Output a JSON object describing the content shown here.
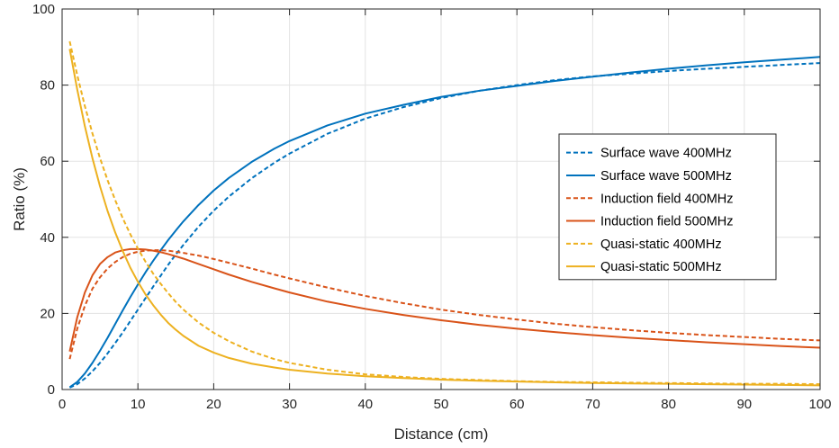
{
  "chart_data": {
    "type": "line",
    "title": "",
    "xlabel": "Distance (cm)",
    "ylabel": "Ratio (%)",
    "xlim": [
      0,
      100
    ],
    "ylim": [
      0,
      100
    ],
    "xticks": [
      "0",
      "10",
      "20",
      "30",
      "40",
      "50",
      "60",
      "70",
      "80",
      "90",
      "100"
    ],
    "yticks": [
      "0",
      "20",
      "40",
      "60",
      "80",
      "100"
    ],
    "grid": true,
    "legend_position": "right",
    "x": [
      1,
      2,
      3,
      4,
      5,
      6,
      7,
      8,
      9,
      10,
      11,
      12,
      13,
      14,
      15,
      16,
      18,
      20,
      22,
      25,
      28,
      30,
      35,
      40,
      45,
      50,
      55,
      60,
      65,
      70,
      75,
      80,
      85,
      90,
      95,
      100
    ],
    "series": [
      {
        "name": "Surface wave 400MHz",
        "color": "#0072BD",
        "dash": "dashed",
        "values": [
          0.5,
          1.4,
          2.9,
          4.8,
          7.0,
          9.5,
          12.2,
          15.0,
          18.0,
          21.0,
          24.0,
          27.0,
          29.9,
          32.8,
          35.5,
          38.0,
          42.8,
          47.0,
          50.7,
          55.5,
          59.6,
          62.0,
          67.2,
          71.2,
          74.2,
          76.6,
          78.5,
          80.0,
          81.3,
          82.3,
          83.0,
          83.7,
          84.3,
          84.8,
          85.3,
          85.8
        ]
      },
      {
        "name": "Surface wave 500MHz",
        "color": "#0072BD",
        "dash": "solid",
        "values": [
          0.6,
          2.0,
          4.2,
          7.0,
          10.2,
          13.6,
          17.2,
          20.8,
          24.3,
          27.6,
          30.8,
          33.8,
          36.6,
          39.3,
          41.8,
          44.2,
          48.5,
          52.3,
          55.6,
          59.8,
          63.3,
          65.3,
          69.4,
          72.5,
          74.8,
          76.9,
          78.5,
          79.8,
          81.1,
          82.2,
          83.3,
          84.3,
          85.2,
          86.0,
          86.7,
          87.4
        ]
      },
      {
        "name": "Induction field 400MHz",
        "color": "#D95319",
        "dash": "dashed",
        "values": [
          8.0,
          16.0,
          22.0,
          26.5,
          29.5,
          31.8,
          33.5,
          34.8,
          35.7,
          36.2,
          36.5,
          36.6,
          36.6,
          36.5,
          36.2,
          35.9,
          35.2,
          34.3,
          33.3,
          31.8,
          30.2,
          29.2,
          26.8,
          24.6,
          22.7,
          21.0,
          19.6,
          18.4,
          17.3,
          16.4,
          15.6,
          14.9,
          14.3,
          13.8,
          13.3,
          12.9
        ]
      },
      {
        "name": "Induction field 500MHz",
        "color": "#D95319",
        "dash": "solid",
        "values": [
          10.0,
          19.0,
          25.5,
          30.0,
          33.0,
          34.8,
          36.0,
          36.6,
          36.9,
          36.9,
          36.8,
          36.5,
          36.1,
          35.6,
          35.0,
          34.4,
          33.0,
          31.6,
          30.2,
          28.3,
          26.6,
          25.5,
          23.1,
          21.2,
          19.6,
          18.2,
          17.0,
          16.0,
          15.1,
          14.3,
          13.6,
          13.0,
          12.4,
          11.9,
          11.4,
          11.0
        ]
      },
      {
        "name": "Quasi-static 400MHz",
        "color": "#EDB120",
        "dash": "dashed",
        "values": [
          91.5,
          82.6,
          74.5,
          67.3,
          60.8,
          55.0,
          49.8,
          45.0,
          40.8,
          37.0,
          33.6,
          30.5,
          27.8,
          25.3,
          23.0,
          21.0,
          17.6,
          14.9,
          12.7,
          10.0,
          8.0,
          7.0,
          5.2,
          4.0,
          3.3,
          2.8,
          2.5,
          2.2,
          2.0,
          1.9,
          1.8,
          1.7,
          1.6,
          1.5,
          1.5,
          1.4
        ]
      },
      {
        "name": "Quasi-static 500MHz",
        "color": "#EDB120",
        "dash": "solid",
        "values": [
          89.5,
          78.8,
          69.2,
          60.8,
          53.4,
          46.9,
          41.3,
          36.4,
          32.0,
          28.3,
          25.0,
          22.2,
          19.7,
          17.5,
          15.7,
          14.1,
          11.5,
          9.7,
          8.3,
          6.8,
          5.8,
          5.2,
          4.2,
          3.5,
          3.0,
          2.6,
          2.3,
          2.1,
          1.9,
          1.7,
          1.6,
          1.5,
          1.4,
          1.3,
          1.2,
          1.1
        ]
      }
    ]
  }
}
